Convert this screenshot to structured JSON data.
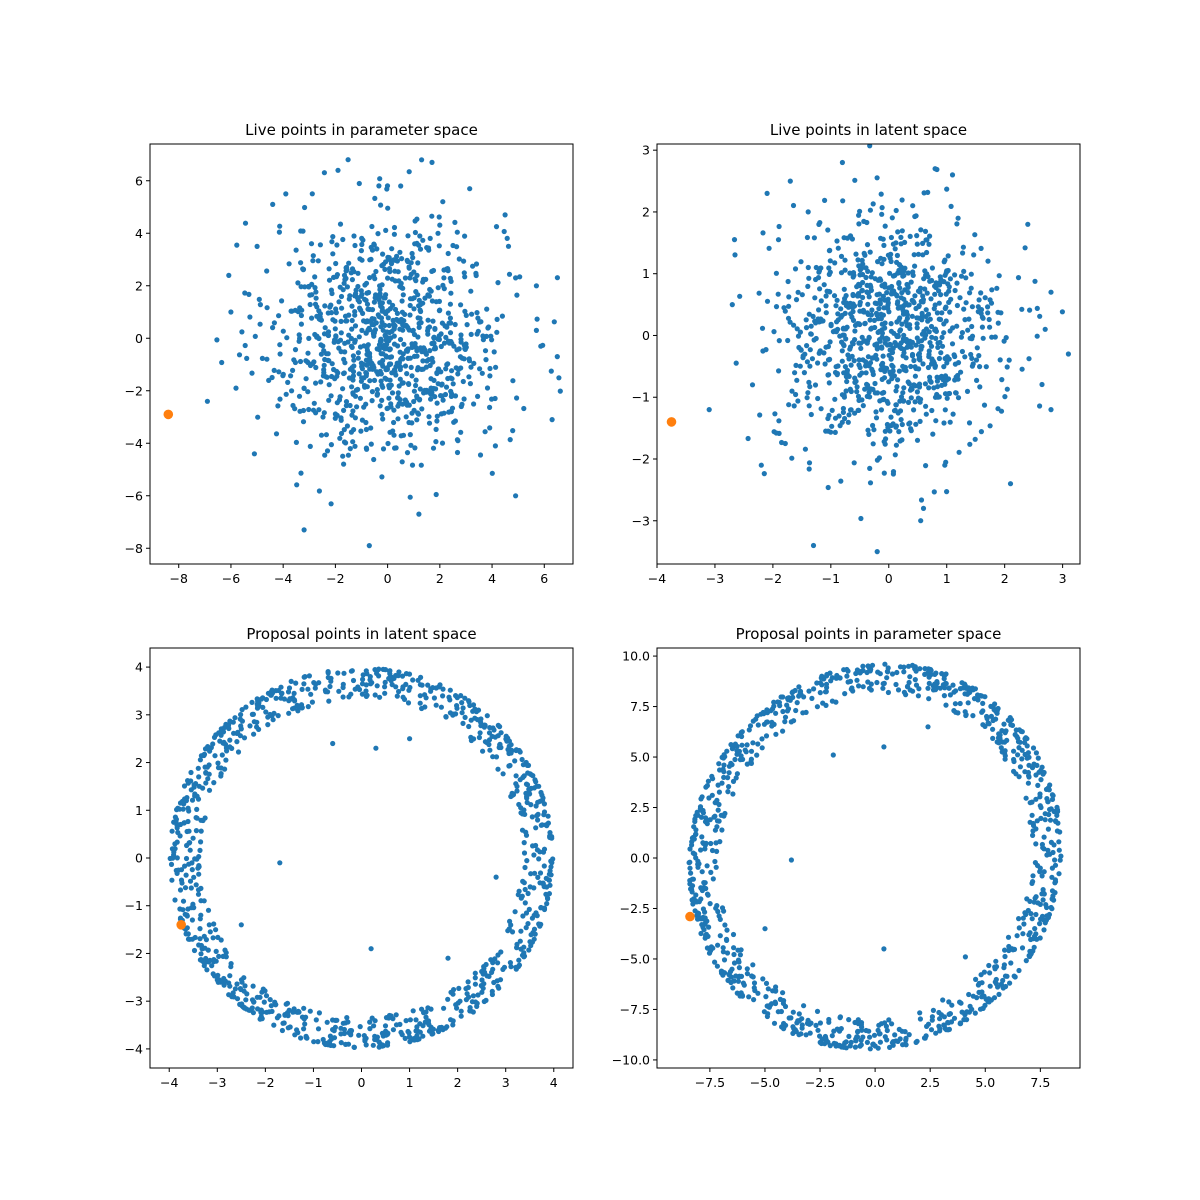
{
  "chart_data": [
    {
      "type": "scatter",
      "title": "Live points in parameter space",
      "xlabel": "",
      "ylabel": "",
      "xlim": [
        -9.1,
        7.1
      ],
      "ylim": [
        -8.6,
        7.4
      ],
      "xticks": [
        -8,
        -6,
        -4,
        -2,
        0,
        2,
        4,
        6
      ],
      "yticks": [
        -8,
        -6,
        -4,
        -2,
        0,
        2,
        4,
        6
      ],
      "grid": false,
      "series": [
        {
          "color": "#1f77b4",
          "point_size": "small",
          "distribution": "approximately isotropic Gaussian cloud centred near (0, 0), sample of about 1000 points",
          "points": [
            [
              -6.9,
              -2.4
            ],
            [
              -5.1,
              -4.4
            ],
            [
              6.5,
              -0.7
            ],
            [
              6.3,
              -3.1
            ],
            [
              4.9,
              -6.0
            ],
            [
              -3.2,
              -7.3
            ],
            [
              -0.7,
              -7.9
            ],
            [
              1.2,
              -6.7
            ],
            [
              1.3,
              6.8
            ],
            [
              1.7,
              6.7
            ],
            [
              -1.9,
              6.4
            ],
            [
              -4.4,
              5.1
            ],
            [
              -3.9,
              5.5
            ],
            [
              5.7,
              2.0
            ],
            [
              5.7,
              0.3
            ],
            [
              -6.0,
              1.0
            ],
            [
              0.5,
              5.8
            ],
            [
              4.5,
              4.7
            ],
            [
              -5.0,
              3.5
            ],
            [
              4.9,
              2.3
            ]
          ]
        },
        {
          "color": "#ff7f0e",
          "point_size": "large",
          "points": [
            [
              -8.4,
              -2.9
            ]
          ]
        }
      ]
    },
    {
      "type": "scatter",
      "title": "Live points in latent space",
      "xlabel": "",
      "ylabel": "",
      "xlim": [
        -4.0,
        3.3
      ],
      "ylim": [
        -3.7,
        3.1
      ],
      "xticks": [
        -4,
        -3,
        -2,
        -1,
        0,
        1,
        2,
        3
      ],
      "yticks": [
        -3,
        -2,
        -1,
        0,
        1,
        2,
        3
      ],
      "grid": false,
      "series": [
        {
          "color": "#1f77b4",
          "point_size": "small",
          "distribution": "approximately standard normal cloud centred near (0, 0), sample of about 1000 points",
          "points": [
            [
              -3.1,
              -1.2
            ],
            [
              3.1,
              -0.3
            ],
            [
              2.8,
              -1.2
            ],
            [
              2.1,
              -2.4
            ],
            [
              -1.3,
              -3.4
            ],
            [
              -0.2,
              -3.5
            ],
            [
              0.6,
              -2.8
            ],
            [
              -0.8,
              2.8
            ],
            [
              0.8,
              2.7
            ],
            [
              1.1,
              2.6
            ],
            [
              -1.7,
              2.5
            ],
            [
              -2.1,
              2.3
            ],
            [
              -2.7,
              0.5
            ],
            [
              2.8,
              0.7
            ],
            [
              2.7,
              0.1
            ],
            [
              -2.2,
              -2.1
            ],
            [
              2.4,
              1.8
            ]
          ]
        },
        {
          "color": "#ff7f0e",
          "point_size": "large",
          "points": [
            [
              -3.75,
              -1.4
            ]
          ]
        }
      ]
    },
    {
      "type": "scatter",
      "title": "Proposal points in latent space",
      "xlabel": "",
      "ylabel": "",
      "xlim": [
        -4.4,
        4.4
      ],
      "ylim": [
        -4.4,
        4.4
      ],
      "xticks": [
        -4,
        -3,
        -2,
        -1,
        0,
        1,
        2,
        3,
        4
      ],
      "yticks": [
        -4,
        -3,
        -2,
        -1,
        0,
        1,
        2,
        3,
        4
      ],
      "grid": false,
      "series": [
        {
          "color": "#1f77b4",
          "point_size": "small",
          "distribution": "dense ring of about 1000 points with radius roughly 3.4 to 4.0 centred at (0, 0), a few scattered points inside",
          "points": [
            [
              -1.7,
              -0.1
            ],
            [
              0.2,
              -1.9
            ],
            [
              2.8,
              -0.4
            ],
            [
              -0.6,
              2.4
            ],
            [
              0.3,
              2.3
            ],
            [
              1.0,
              2.5
            ],
            [
              -2.5,
              -1.4
            ],
            [
              1.8,
              -2.1
            ]
          ]
        },
        {
          "color": "#ff7f0e",
          "point_size": "large",
          "points": [
            [
              -3.75,
              -1.4
            ]
          ]
        }
      ]
    },
    {
      "type": "scatter",
      "title": "Proposal points in parameter space",
      "xlabel": "",
      "ylabel": "",
      "xlim": [
        -9.9,
        9.3
      ],
      "ylim": [
        -10.4,
        10.4
      ],
      "xticks": [
        -7.5,
        -5.0,
        -2.5,
        0.0,
        2.5,
        5.0,
        7.5
      ],
      "ytick_values": [
        -10.0,
        -7.5,
        -5.0,
        -2.5,
        0.0,
        2.5,
        5.0,
        7.5,
        10.0
      ],
      "grid": false,
      "series": [
        {
          "color": "#1f77b4",
          "point_size": "small",
          "distribution": "distorted ring of about 1000 points centred near (0, 0), x extent about -8.8 to 8.4, y extent about -9.5 to 9.6, a few scattered points inside",
          "points": [
            [
              -3.8,
              -0.1
            ],
            [
              0.4,
              -4.5
            ],
            [
              7.5,
              -0.5
            ],
            [
              -1.9,
              5.1
            ],
            [
              0.4,
              5.5
            ],
            [
              2.4,
              6.5
            ],
            [
              -5.0,
              -3.5
            ],
            [
              4.1,
              -4.9
            ]
          ]
        },
        {
          "color": "#ff7f0e",
          "point_size": "large",
          "points": [
            [
              -8.4,
              -2.9
            ]
          ]
        }
      ]
    }
  ]
}
